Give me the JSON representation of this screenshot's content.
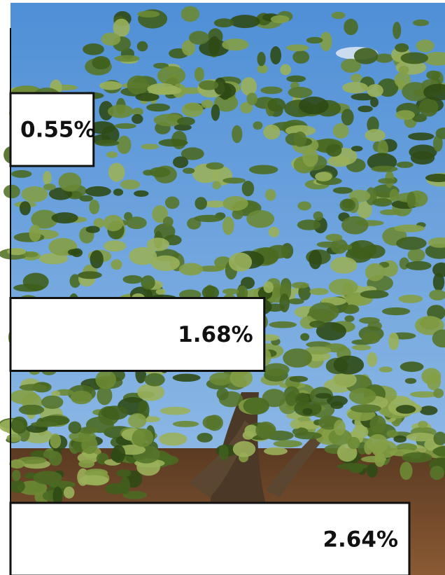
{
  "chart_data": {
    "type": "bar",
    "orientation": "horizontal",
    "categories": [
      null,
      null,
      null
    ],
    "values": [
      0.55,
      1.68,
      2.64
    ],
    "value_labels": [
      "0.55%",
      "1.68%",
      "2.64%"
    ],
    "color": "#ffffff"
  }
}
